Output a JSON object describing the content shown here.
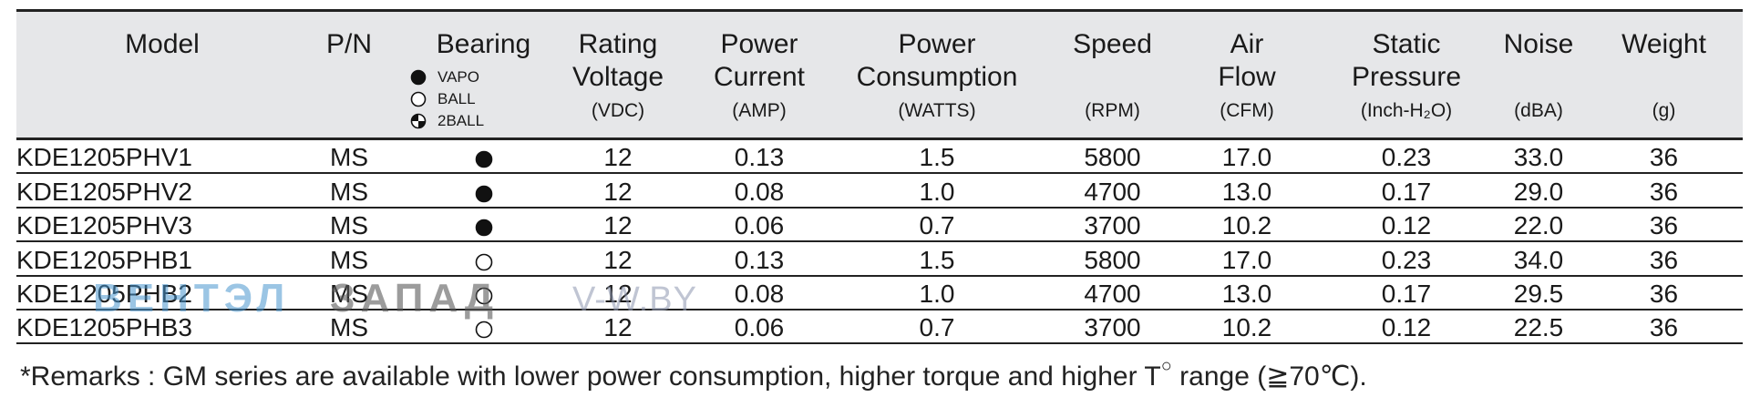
{
  "table": {
    "columns": [
      {
        "key": "model",
        "line1": "Model",
        "line2": "",
        "unit": ""
      },
      {
        "key": "pn",
        "line1": "P/N",
        "line2": "",
        "unit": ""
      },
      {
        "key": "bearing",
        "line1": "Bearing",
        "line2": "",
        "unit": ""
      },
      {
        "key": "voltage",
        "line1": "Rating",
        "line2": "Voltage",
        "unit": "(VDC)"
      },
      {
        "key": "current",
        "line1": "Power",
        "line2": "Current",
        "unit": "(AMP)"
      },
      {
        "key": "power",
        "line1": "Power",
        "line2": "Consumption",
        "unit": "(WATTS)"
      },
      {
        "key": "speed",
        "line1": "Speed",
        "line2": "",
        "unit": "(RPM)"
      },
      {
        "key": "airflow",
        "line1": "Air",
        "line2": "Flow",
        "unit": "(CFM)"
      },
      {
        "key": "pressure",
        "line1": "Static",
        "line2": "Pressure",
        "unit": "(Inch-H₂O)"
      },
      {
        "key": "noise",
        "line1": "Noise",
        "line2": "",
        "unit": "(dBA)"
      },
      {
        "key": "weight",
        "line1": "Weight",
        "line2": "",
        "unit": "(g)"
      }
    ],
    "bearing_legend": [
      {
        "icon": "filled-circle-icon",
        "label": "VAPO"
      },
      {
        "icon": "open-circle-icon",
        "label": "BALL"
      },
      {
        "icon": "half-filled-circle-icon",
        "label": "2BALL"
      }
    ],
    "rows": [
      {
        "model": "KDE1205PHV1",
        "pn": "MS",
        "bearing": "filled-circle-icon",
        "voltage": "12",
        "current": "0.13",
        "power": "1.5",
        "speed": "5800",
        "airflow": "17.0",
        "pressure": "0.23",
        "noise": "33.0",
        "weight": "36"
      },
      {
        "model": "KDE1205PHV2",
        "pn": "MS",
        "bearing": "filled-circle-icon",
        "voltage": "12",
        "current": "0.08",
        "power": "1.0",
        "speed": "4700",
        "airflow": "13.0",
        "pressure": "0.17",
        "noise": "29.0",
        "weight": "36"
      },
      {
        "model": "KDE1205PHV3",
        "pn": "MS",
        "bearing": "filled-circle-icon",
        "voltage": "12",
        "current": "0.06",
        "power": "0.7",
        "speed": "3700",
        "airflow": "10.2",
        "pressure": "0.12",
        "noise": "22.0",
        "weight": "36"
      },
      {
        "model": "KDE1205PHB1",
        "pn": "MS",
        "bearing": "open-circle-icon",
        "voltage": "12",
        "current": "0.13",
        "power": "1.5",
        "speed": "5800",
        "airflow": "17.0",
        "pressure": "0.23",
        "noise": "34.0",
        "weight": "36"
      },
      {
        "model": "KDE1205PHB2",
        "pn": "MS",
        "bearing": "open-circle-icon",
        "voltage": "12",
        "current": "0.08",
        "power": "1.0",
        "speed": "4700",
        "airflow": "13.0",
        "pressure": "0.17",
        "noise": "29.5",
        "weight": "36"
      },
      {
        "model": "KDE1205PHB3",
        "pn": "MS",
        "bearing": "open-circle-icon",
        "voltage": "12",
        "current": "0.06",
        "power": "0.7",
        "speed": "3700",
        "airflow": "10.2",
        "pressure": "0.12",
        "noise": "22.5",
        "weight": "36"
      }
    ]
  },
  "remarks": {
    "text_before": "*Remarks : GM series are available with lower power consumption, higher torque and higher T",
    "superscript": "○",
    "text_after": " range (≧70℃)."
  },
  "watermark": {
    "part1": "ВЕНТЭЛ",
    "part2": "ЗАПАД",
    "part3": "V-W.BY"
  },
  "colors": {
    "header_bg": "#e6e7e9",
    "rule": "#222222",
    "text": "#1a1a1a"
  }
}
